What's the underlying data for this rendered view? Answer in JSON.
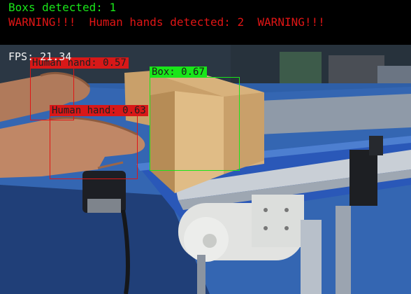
{
  "header": {
    "boxes_line": "Boxs detected: 1",
    "warning_line": "WARNING!!!  Human hands detected: 2  WARNING!!!"
  },
  "fps_readout": "FPS: 21.34",
  "detections": [
    {
      "label": "Human hand: 0.57",
      "class": "hand"
    },
    {
      "label": "Box: 0.67",
      "class": "box"
    },
    {
      "label": "Human hand: 0.63",
      "class": "hand"
    }
  ],
  "colors": {
    "box_green": "#19e619",
    "hand_red": "#e01515",
    "hand_label_bg": "#d81818",
    "hand_label_text": "#202020",
    "box_label_text": "#1a1a1a"
  }
}
